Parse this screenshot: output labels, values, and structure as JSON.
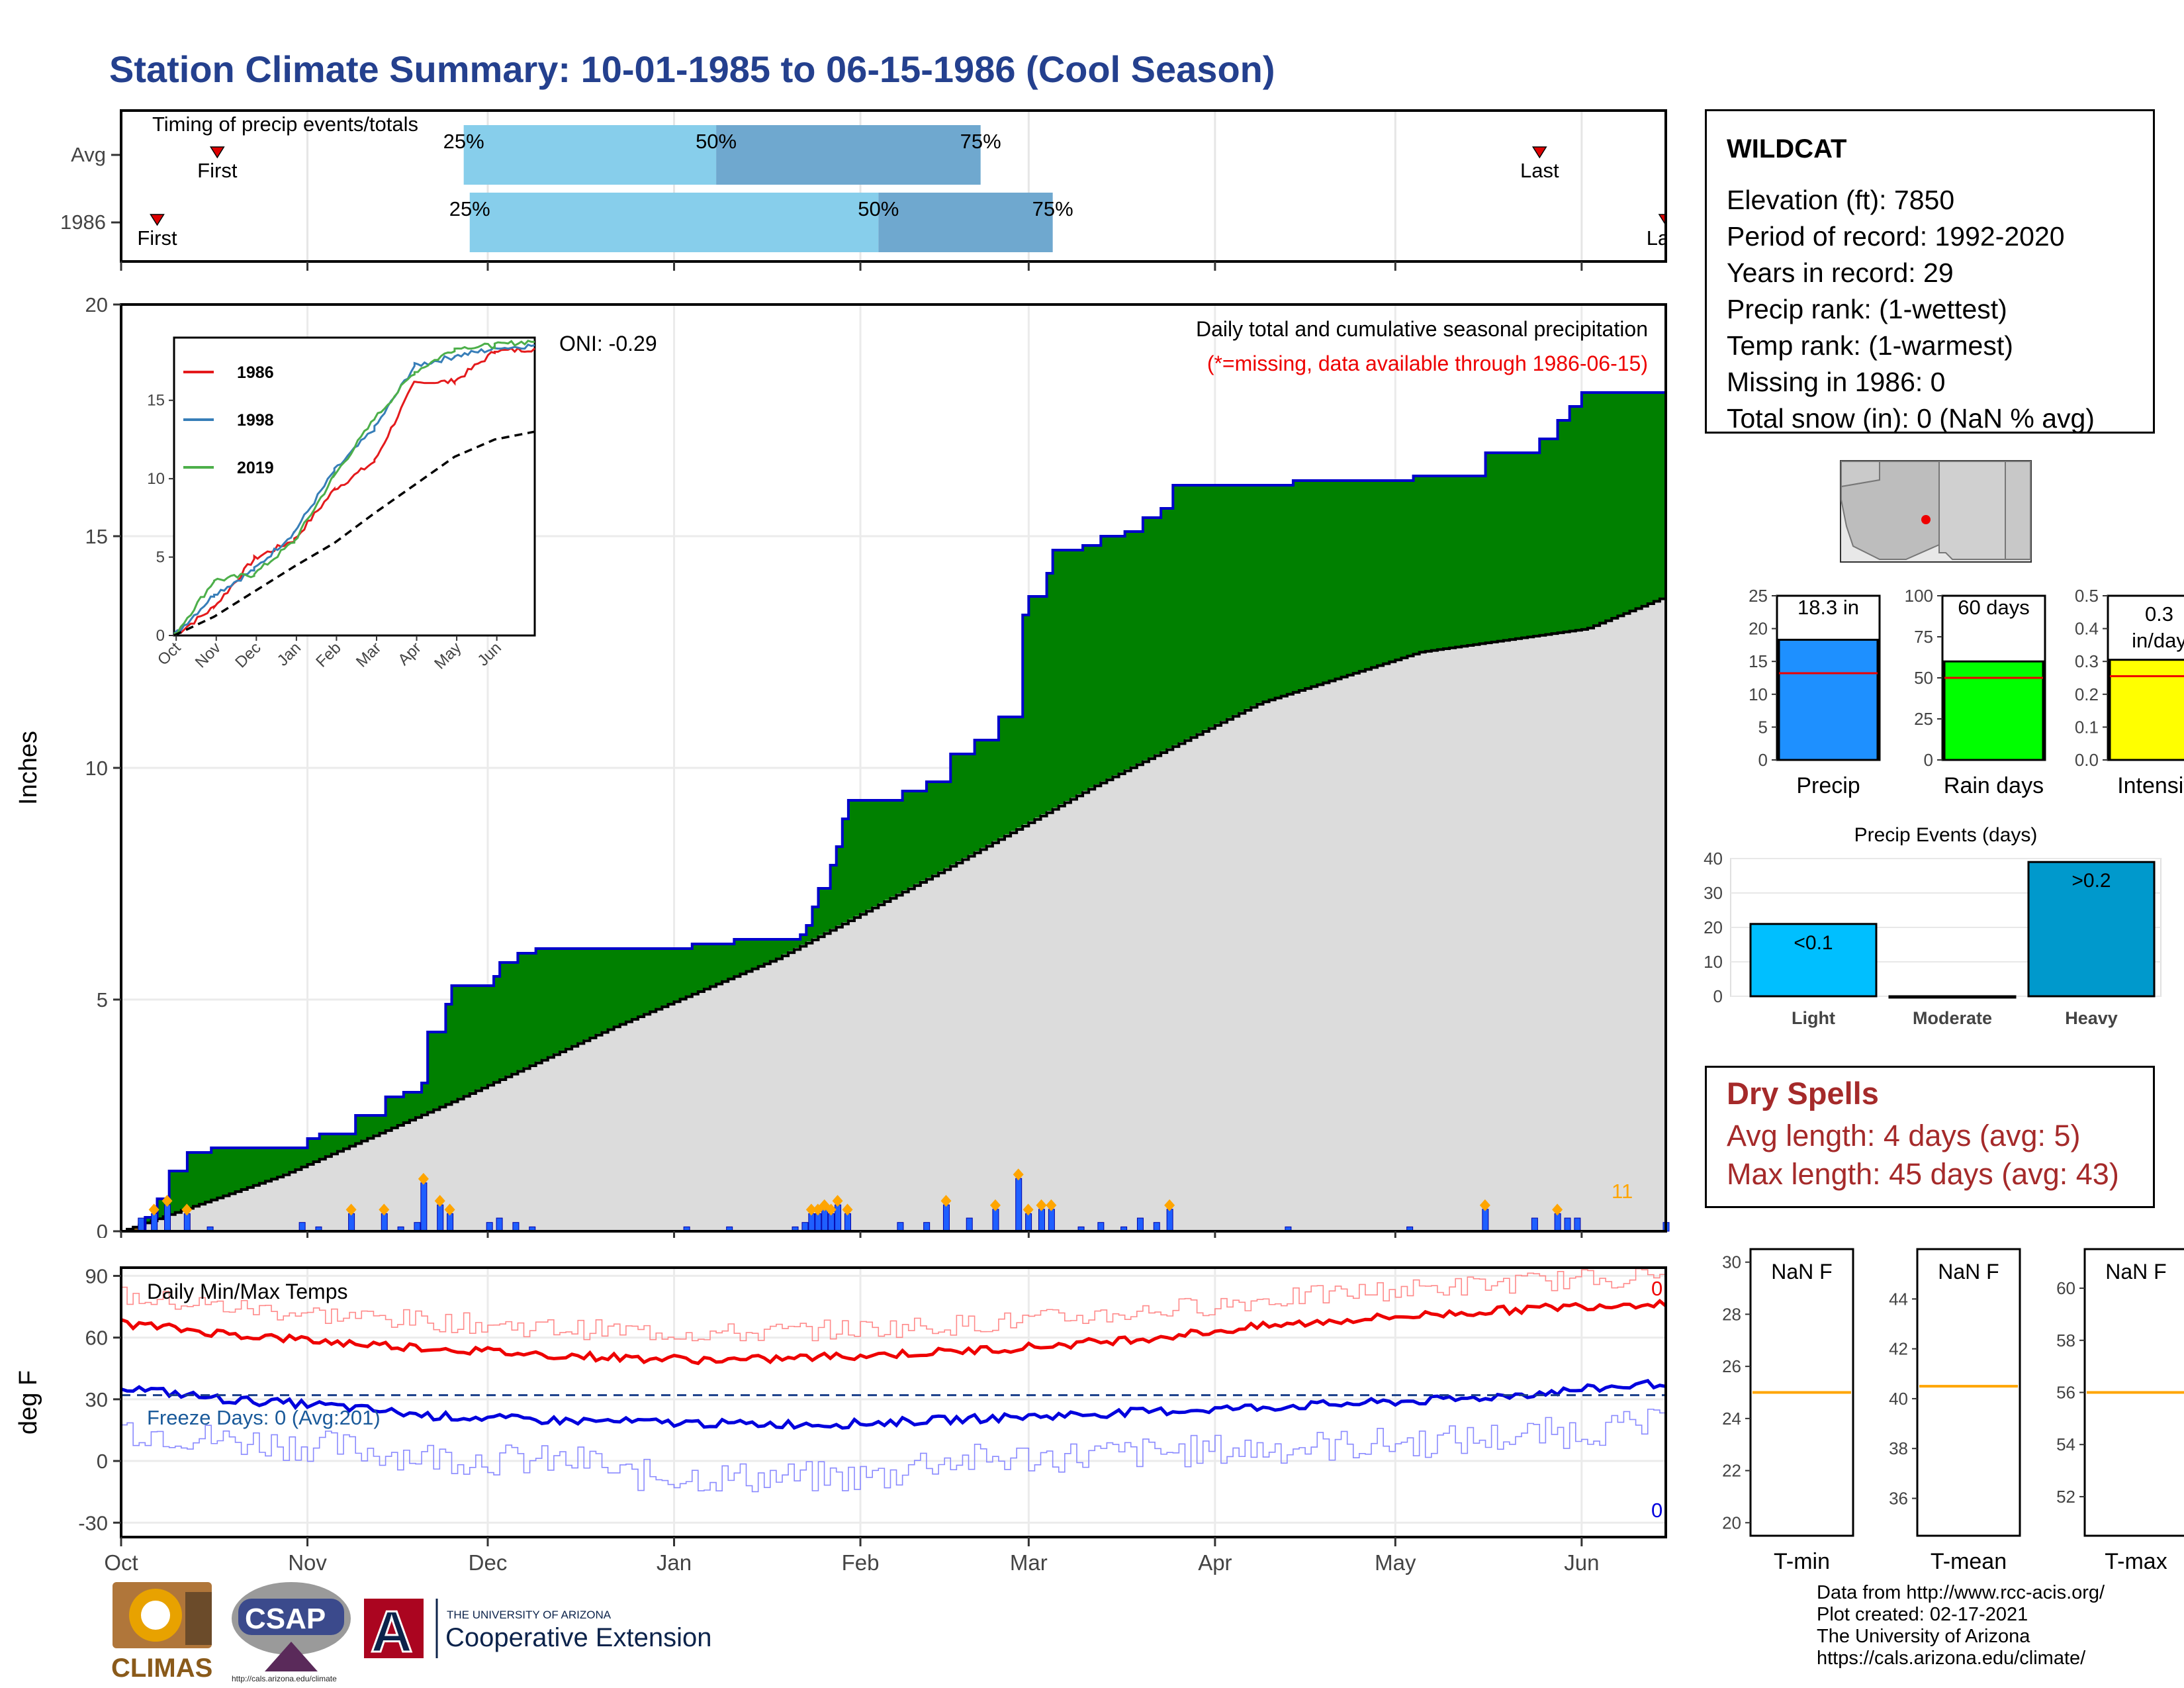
{
  "title": "Station Climate Summary: 10-01-1985 to 06-15-1986 (Cool Season)",
  "timing": {
    "label": "Timing of precip events/totals",
    "rows": [
      {
        "name": "Avg",
        "first": "First",
        "last": "Last",
        "p25": "25%",
        "p50": "50%",
        "p75": "75%",
        "first_day": 16,
        "last_day": 236,
        "q25_day": 57,
        "q50_day": 99,
        "q75_day": 143
      },
      {
        "name": "1986",
        "first": "First",
        "last": "Last",
        "p25": "25%",
        "p50": "50%",
        "p75": "75%",
        "first_day": 6,
        "last_day": 257,
        "q25_day": 58,
        "q50_day": 126,
        "q75_day": 155
      }
    ],
    "colors": {
      "light": "#87ceeb",
      "dark": "#6fa8cf",
      "marker": "#dd0000"
    }
  },
  "main_chart": {
    "ylabel": "Inches",
    "yticks": [
      "0",
      "5",
      "10",
      "15",
      "20"
    ],
    "ylim": [
      0,
      20
    ],
    "xticks": [
      "Oct",
      "Nov",
      "Dec",
      "Jan",
      "Feb",
      "Mar",
      "Apr",
      "May",
      "Jun"
    ],
    "subtitle": "Daily total and cumulative seasonal precipitation",
    "missing_note": "(*=missing, data available through 1986-06-15)",
    "oni": "ONI: -0.29",
    "count_label": "11",
    "colors": {
      "above": "#008000",
      "below": "#8b5a00",
      "normal": "#dcdcdc",
      "line": "#0000cc",
      "bars": "#1f5fff",
      "diamond": "#ffa500"
    }
  },
  "inset": {
    "yticks": [
      "0",
      "5",
      "10",
      "15"
    ],
    "xticks": [
      "Oct",
      "Nov",
      "Dec",
      "Jan",
      "Feb",
      "Mar",
      "Apr",
      "May",
      "Jun"
    ],
    "legend": [
      "1986",
      "1998",
      "2019"
    ],
    "colors": [
      "#e41a1c",
      "#377eb8",
      "#4daf4a"
    ]
  },
  "temp_chart": {
    "ylabel": "deg F",
    "label": "Daily Min/Max Temps",
    "freeze_label": "Freeze Days: 0 (Avg:201)",
    "yticks": [
      "-30",
      "0",
      "30",
      "60",
      "90"
    ],
    "ylim": [
      -37,
      94
    ],
    "count_max": "0",
    "count_min": "0"
  },
  "station": {
    "name": "WILDCAT",
    "lines": [
      "Elevation (ft): 7850",
      "Period of record: 1992-2020",
      "Years in record: 29",
      "Precip rank:  (1-wettest)",
      "Temp rank:  (1-warmest)",
      "Missing in 1986: 0",
      "Total snow (in): 0 (NaN % avg)"
    ]
  },
  "summary_bars": [
    {
      "label": "Precip",
      "value_label": "18.3 in",
      "value": 18.3,
      "avg": 13.2,
      "ymax": 25,
      "yticks": [
        "0",
        "5",
        "10",
        "15",
        "20",
        "25"
      ],
      "color": "#1e90ff"
    },
    {
      "label": "Rain days",
      "value_label": "60 days",
      "value": 60,
      "avg": 50,
      "ymax": 100,
      "yticks": [
        "0",
        "25",
        "50",
        "75",
        "100"
      ],
      "color": "#00ff00"
    },
    {
      "label": "Intensity",
      "value_label": "0.3 in/day",
      "value": 0.305,
      "avg": 0.255,
      "ymax": 0.5,
      "yticks": [
        "0.0",
        "0.1",
        "0.2",
        "0.3",
        "0.4",
        "0.5"
      ],
      "color": "#ffff00"
    }
  ],
  "events": {
    "title": "Precip Events (days)",
    "categories": [
      "Light",
      "Moderate",
      "Heavy"
    ],
    "bar_labels": [
      "<0.1",
      "",
      ">0.2"
    ],
    "values": [
      21,
      0,
      39
    ],
    "ymax": 40,
    "yticks": [
      "0",
      "10",
      "20",
      "30",
      "40"
    ]
  },
  "dry_spells": {
    "title": "Dry Spells",
    "avg": "Avg length: 4 days (avg: 5)",
    "max": "Max length: 45 days (avg: 43)"
  },
  "temp_panels": [
    {
      "label": "T-min",
      "value_label": "NaN F",
      "ylim": [
        19.5,
        30.5
      ],
      "yticks": [
        "20",
        "22",
        "24",
        "26",
        "28",
        "30"
      ],
      "avg": 25
    },
    {
      "label": "T-mean",
      "value_label": "NaN F",
      "ylim": [
        34.5,
        46
      ],
      "yticks": [
        "36",
        "38",
        "40",
        "42",
        "44"
      ],
      "avg": 40.5
    },
    {
      "label": "T-max",
      "value_label": "NaN F",
      "ylim": [
        50.5,
        61.5
      ],
      "yticks": [
        "52",
        "54",
        "56",
        "58",
        "60"
      ],
      "avg": 56
    }
  ],
  "credits": [
    "Data from http://www.rcc-acis.org/",
    "Plot created: 02-17-2021",
    "The University of Arizona",
    "https://cals.arizona.edu/climate/"
  ],
  "logos": {
    "climas": "CLIMAS",
    "csap": "CSAP",
    "csap_url": "http://cals.arizona.edu/climate",
    "ua_line1": "THE UNIVERSITY OF ARIZONA",
    "ua_line2": "Cooperative Extension",
    "ua_letter": "A"
  },
  "chart_data": [
    {
      "type": "area",
      "title": "Daily total and cumulative seasonal precipitation",
      "ylabel": "Inches",
      "ylim": [
        0,
        20
      ],
      "x_range": [
        "1985-10-01",
        "1986-06-15"
      ],
      "series": [
        {
          "name": "1986",
          "points": [
            [
              0,
              0
            ],
            [
              6,
              0.3
            ],
            [
              10,
              0.7
            ],
            [
              14,
              1.3
            ],
            [
              20,
              1.7
            ],
            [
              27,
              1.8
            ],
            [
              45,
              1.8
            ],
            [
              55,
              2.0
            ],
            [
              60,
              2.1
            ],
            [
              70,
              2.5
            ],
            [
              80,
              2.9
            ],
            [
              85,
              3.0
            ],
            [
              90,
              3.2
            ],
            [
              92,
              4.3
            ],
            [
              97,
              4.9
            ],
            [
              100,
              5.3
            ],
            [
              112,
              5.5
            ],
            [
              115,
              5.8
            ],
            [
              120,
              6.0
            ],
            [
              125,
              6.1
            ],
            [
              165,
              6.1
            ],
            [
              172,
              6.2
            ],
            [
              185,
              6.3
            ],
            [
              202,
              6.3
            ],
            [
              205,
              6.4
            ],
            [
              208,
              6.6
            ],
            [
              210,
              7.0
            ],
            [
              212,
              7.4
            ],
            [
              214,
              7.9
            ],
            [
              216,
              8.3
            ],
            [
              218,
              8.9
            ],
            [
              221,
              9.3
            ],
            [
              237,
              9.5
            ],
            [
              245,
              9.7
            ],
            [
              251,
              10.3
            ],
            [
              258,
              10.6
            ],
            [
              266,
              11.1
            ],
            [
              273,
              13.3
            ],
            [
              276,
              13.7
            ],
            [
              280,
              14.2
            ],
            [
              283,
              14.7
            ],
            [
              292,
              14.8
            ],
            [
              298,
              15.0
            ],
            [
              305,
              15.1
            ],
            [
              310,
              15.4
            ],
            [
              315,
              15.6
            ],
            [
              319,
              16.1
            ],
            [
              350,
              16.1
            ],
            [
              355,
              16.2
            ],
            [
              385,
              16.2
            ],
            [
              392,
              16.3
            ],
            [
              400,
              16.3
            ],
            [
              415,
              16.8
            ],
            [
              430,
              17.1
            ],
            [
              437,
              17.5
            ],
            [
              440,
              17.8
            ],
            [
              443,
              18.1
            ],
            [
              449,
              18.1
            ],
            [
              470,
              18.3
            ]
          ]
        },
        {
          "name": "Average",
          "points": [
            [
              0,
              0
            ],
            [
              30,
              1.2
            ],
            [
              62,
              2.8
            ],
            [
              92,
              4.4
            ],
            [
              123,
              5.9
            ],
            [
              154,
              7.8
            ],
            [
              182,
              9.6
            ],
            [
              213,
              11.4
            ],
            [
              243,
              12.5
            ],
            [
              274,
              13.0
            ],
            [
              289,
              13.7
            ]
          ]
        }
      ]
    },
    {
      "type": "line",
      "title": "",
      "ylim": [
        0,
        19
      ],
      "x_range": [
        "Oct",
        "Jun"
      ],
      "series": [
        {
          "name": "1986",
          "values": [
            0,
            1.8,
            4.9,
            6.1,
            9.3,
            11.1,
            16.1,
            16.2,
            18.1,
            18.3
          ]
        },
        {
          "name": "1998",
          "values": [
            0,
            2.6,
            4.2,
            6.6,
            10.5,
            13.2,
            17.2,
            17.8,
            18.3,
            18.5
          ]
        },
        {
          "name": "2019",
          "values": [
            0,
            3.5,
            3.9,
            6.0,
            10.2,
            13.8,
            16.8,
            18.3,
            18.5,
            18.8
          ]
        },
        {
          "name": "Average",
          "values": [
            0,
            1.2,
            2.8,
            4.4,
            5.9,
            7.8,
            9.6,
            11.4,
            12.5,
            13.0
          ]
        }
      ]
    },
    {
      "type": "line",
      "title": "Daily Min/Max Temps",
      "ylabel": "deg F",
      "ylim": [
        -37,
        94
      ],
      "series": [
        {
          "name": "Avg max",
          "values": [
            67,
            62,
            58,
            55,
            52,
            50,
            49,
            51,
            53,
            56,
            60,
            65,
            69,
            72,
            75,
            77
          ]
        },
        {
          "name": "Avg min",
          "values": [
            36,
            30,
            27,
            22,
            20,
            19,
            18,
            18,
            20,
            22,
            24,
            26,
            28,
            30,
            34,
            38
          ]
        },
        {
          "name": "Freeze line",
          "values": [
            32
          ]
        }
      ]
    },
    {
      "type": "bar",
      "title": "Precip Events (days)",
      "categories": [
        "Light",
        "Moderate",
        "Heavy"
      ],
      "values": [
        21,
        0,
        39
      ],
      "ylim": [
        0,
        40
      ]
    }
  ]
}
